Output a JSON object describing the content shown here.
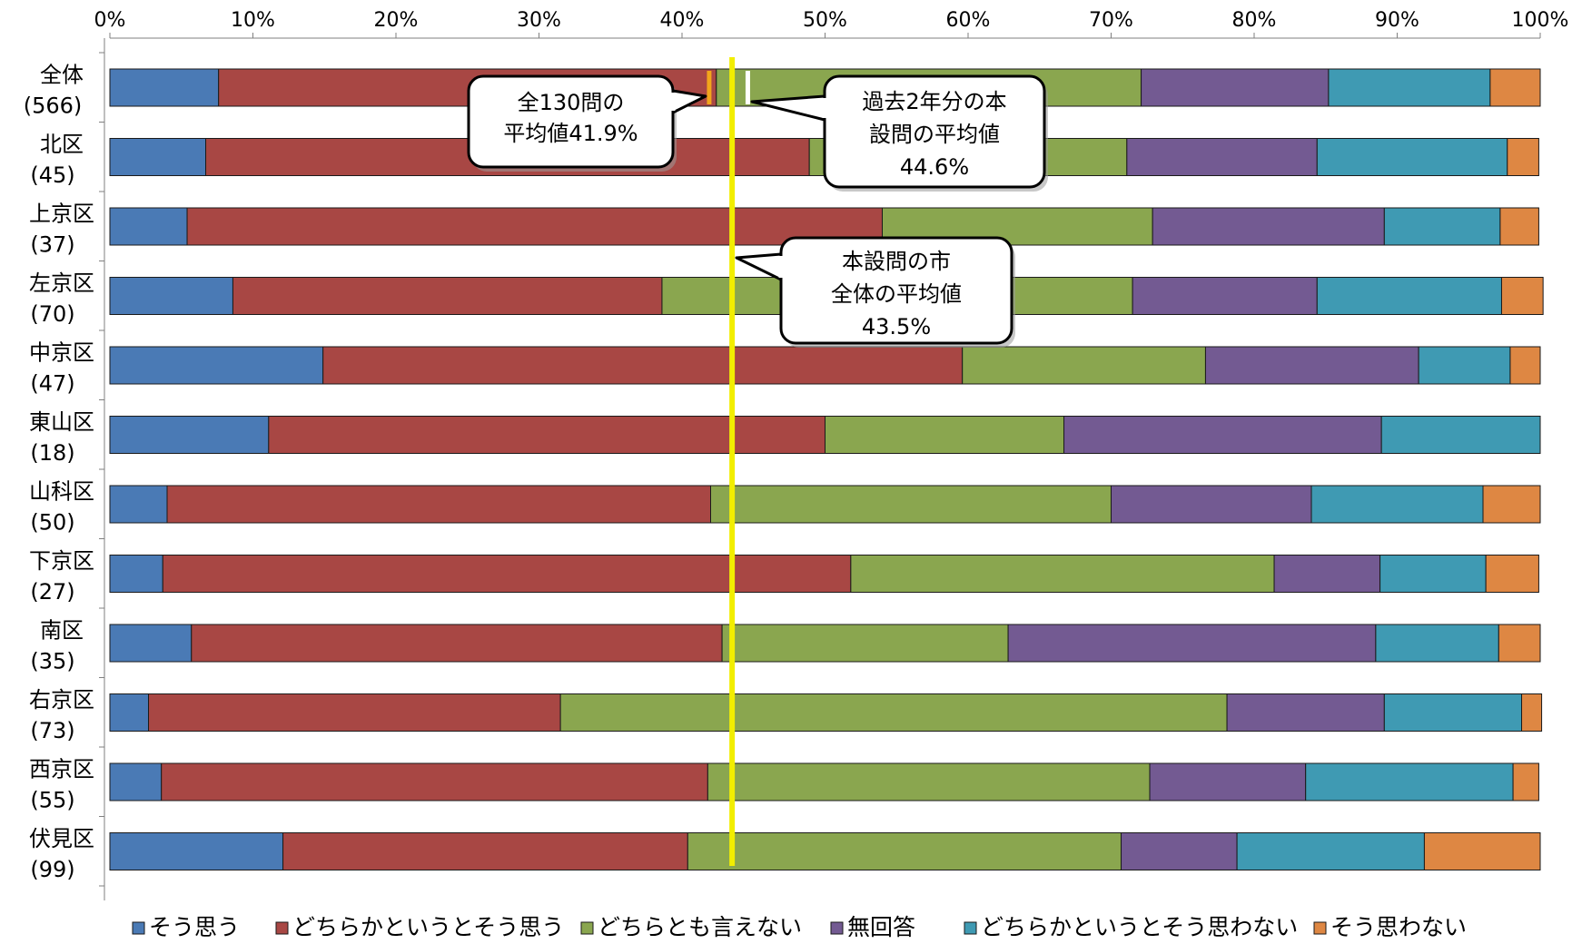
{
  "chart_data": {
    "type": "bar",
    "orientation": "horizontal",
    "stacked": "percent",
    "xlim": [
      0,
      100
    ],
    "x_ticks": [
      "0%",
      "10%",
      "20%",
      "30%",
      "40%",
      "50%",
      "60%",
      "70%",
      "80%",
      "90%",
      "100%"
    ],
    "categories": [
      {
        "name": "全体",
        "n": "(566)"
      },
      {
        "name": "北区",
        "n": "(45)"
      },
      {
        "name": "上京区",
        "n": "(37)"
      },
      {
        "name": "左京区",
        "n": "(70)"
      },
      {
        "name": "中京区",
        "n": "(47)"
      },
      {
        "name": "東山区",
        "n": "(18)"
      },
      {
        "name": "山科区",
        "n": "(50)"
      },
      {
        "name": "下京区",
        "n": "(27)"
      },
      {
        "name": "南区",
        "n": "(35)"
      },
      {
        "name": "右京区",
        "n": "(73)"
      },
      {
        "name": "西京区",
        "n": "(55)"
      },
      {
        "name": "伏見区",
        "n": "(99)"
      }
    ],
    "series": [
      {
        "name": "そう思う",
        "color": "#4a7ab5",
        "values": [
          7.6,
          6.7,
          5.4,
          8.6,
          14.9,
          11.1,
          4.0,
          3.7,
          5.7,
          2.7,
          3.6,
          12.1
        ]
      },
      {
        "name": "どちらかというとそう思う",
        "color": "#a84744",
        "values": [
          34.8,
          42.2,
          48.6,
          30.0,
          44.7,
          38.9,
          38.0,
          48.1,
          37.1,
          28.8,
          38.2,
          28.3
        ]
      },
      {
        "name": "どちらとも言えない",
        "color": "#8aa64f",
        "values": [
          29.7,
          22.2,
          18.9,
          32.9,
          17.0,
          16.7,
          28.0,
          29.6,
          20.0,
          46.6,
          30.9,
          30.3
        ]
      },
      {
        "name": "無回答",
        "color": "#735a92",
        "values": [
          13.1,
          13.3,
          16.2,
          12.9,
          14.9,
          22.2,
          14.0,
          7.4,
          25.7,
          11.0,
          10.9,
          8.1
        ]
      },
      {
        "name": "どちらかというとそう思わない",
        "color": "#3f9ab3",
        "values": [
          11.3,
          13.3,
          8.1,
          12.9,
          6.4,
          11.1,
          12.0,
          7.4,
          8.6,
          9.6,
          14.5,
          13.1
        ]
      },
      {
        "name": "そう思わない",
        "color": "#de8743",
        "values": [
          3.5,
          2.2,
          2.7,
          2.9,
          2.1,
          0.0,
          4.0,
          3.7,
          2.9,
          1.4,
          1.8,
          8.1
        ]
      }
    ],
    "reference_lines": [
      {
        "id": "city_avg",
        "value": 43.5,
        "color": "#f2ee00"
      },
      {
        "id": "all130_avg",
        "value": 41.9,
        "color": "#f2a51b"
      },
      {
        "id": "past2yr_avg",
        "value": 44.6,
        "color": "#ffffff"
      }
    ],
    "callouts": [
      {
        "id": "all130",
        "lines": [
          "全130問の",
          "平均値41.9%"
        ]
      },
      {
        "id": "past2yr",
        "lines": [
          "過去2年分の本",
          "設問の平均値",
          "44.6%"
        ]
      },
      {
        "id": "city",
        "lines": [
          "本設問の市",
          "全体の平均値",
          "43.5%"
        ]
      }
    ],
    "legend_position": "bottom",
    "grid": false
  }
}
